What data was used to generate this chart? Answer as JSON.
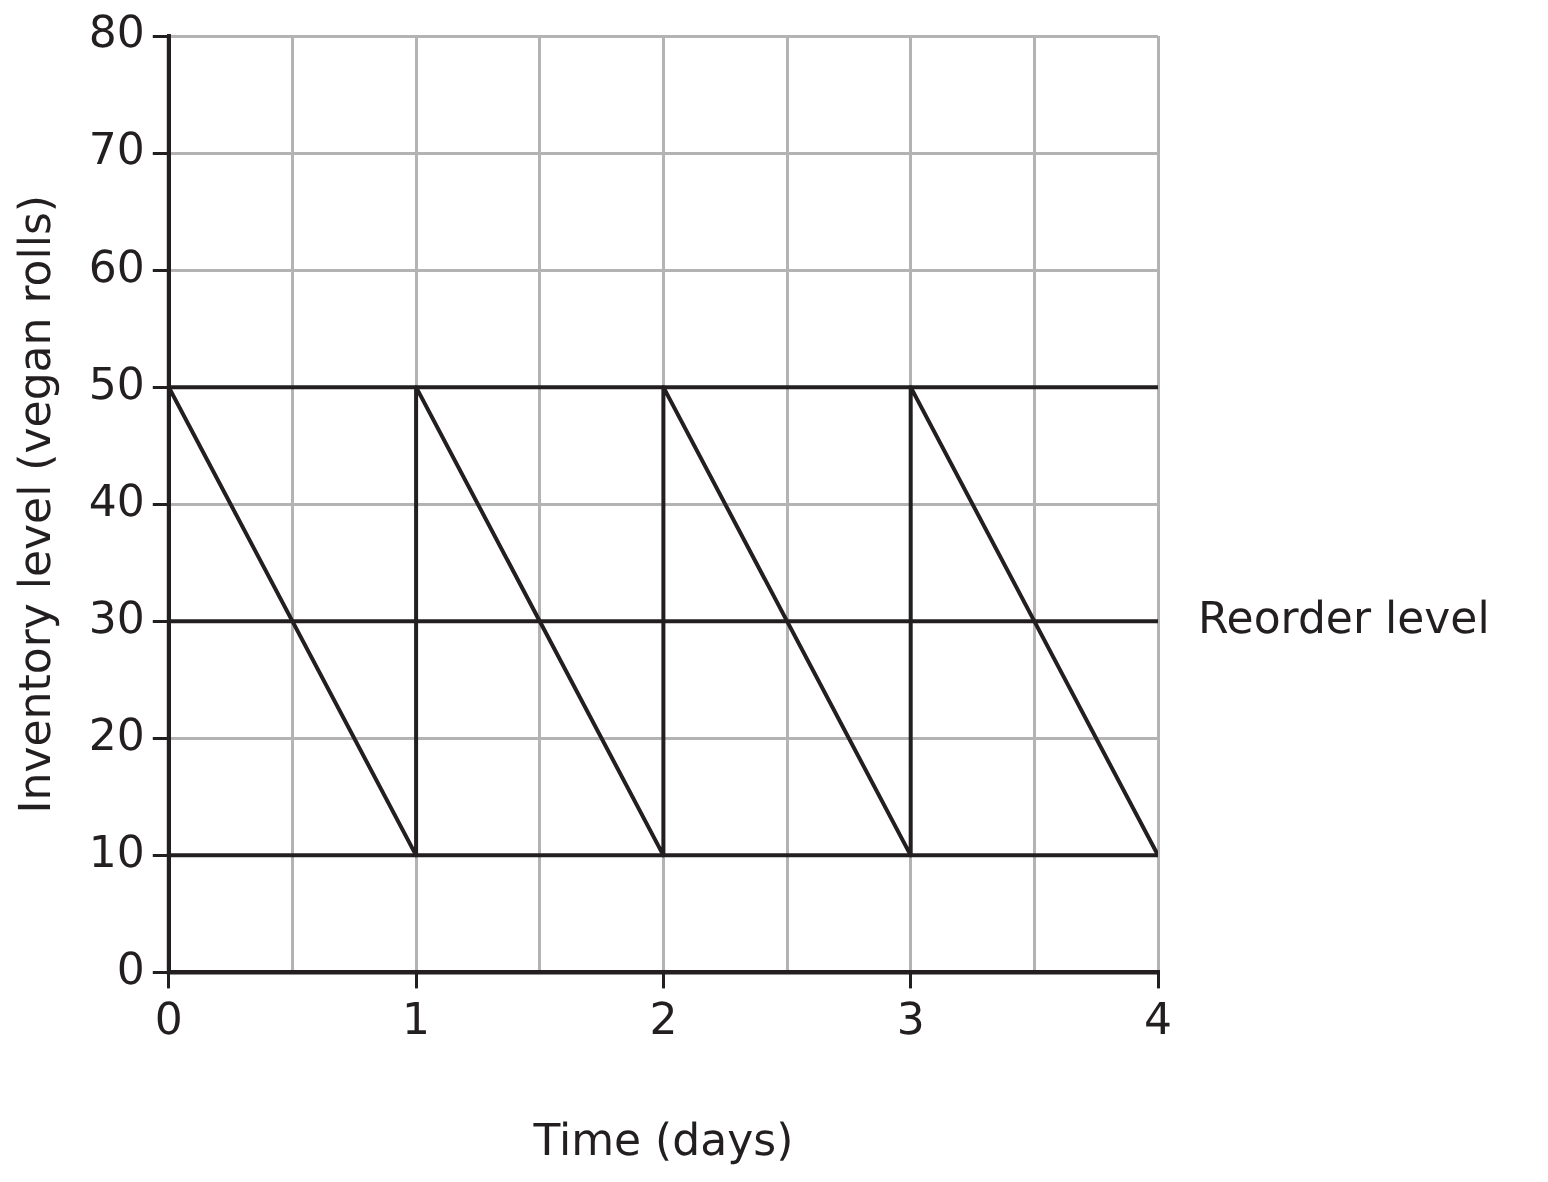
{
  "chart_data": {
    "type": "line",
    "xlabel": "Time (days)",
    "ylabel": "Inventory level (vegan rolls)",
    "series": [
      {
        "color": "#231f20",
        "x": [
          0,
          1,
          1,
          2,
          2,
          3,
          3,
          4
        ],
        "values": [
          50,
          10,
          50,
          10,
          50,
          10,
          50,
          10
        ]
      },
      {
        "color": "#231f20",
        "x": [
          0,
          4
        ],
        "values": [
          50,
          50
        ]
      },
      {
        "name": "Reorder level",
        "color": "#231f20",
        "x": [
          0,
          4
        ],
        "values": [
          30,
          30
        ]
      },
      {
        "color": "#231f20",
        "x": [
          0,
          4
        ],
        "values": [
          10,
          10
        ]
      }
    ],
    "xlim": [
      0,
      4
    ],
    "xticks": [
      0,
      {
        "value": 0.5,
        "label": null
      },
      1,
      {
        "value": 1.5,
        "label": null
      },
      2,
      {
        "value": 2.5,
        "label": null
      },
      3,
      {
        "value": 3.5,
        "label": null
      },
      4
    ],
    "ylim": [
      0,
      80
    ],
    "yticks": [
      0,
      10,
      20,
      30,
      40,
      50,
      60,
      70,
      80
    ],
    "grid": true,
    "legend": false,
    "marker": "none",
    "line_style": "solid"
  }
}
